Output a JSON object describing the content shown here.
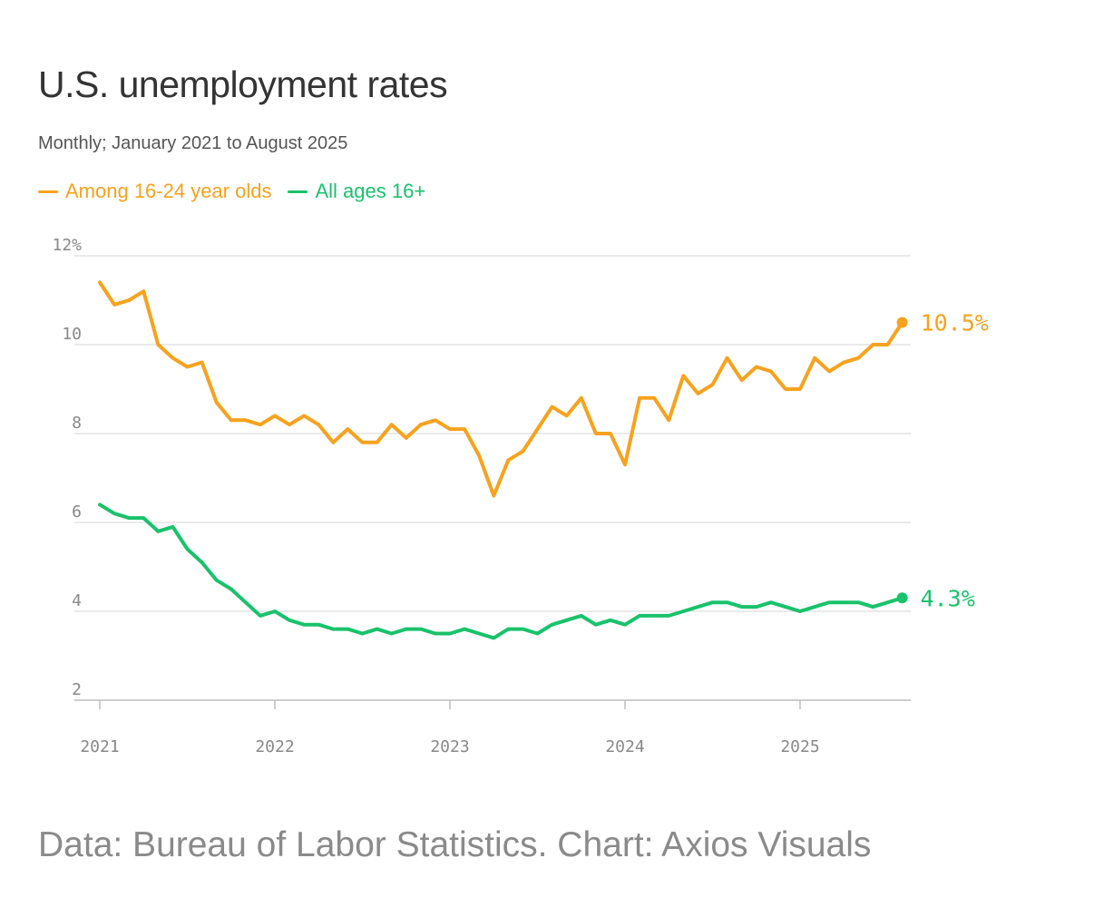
{
  "title": "U.S. unemployment rates",
  "subtitle": "Monthly; January 2021 to August 2025",
  "source": "Data: Bureau of Labor Statistics. Chart: Axios Visuals",
  "colors": {
    "youth": "#F7A21E",
    "all": "#19C26B",
    "grid": "#e3e3e3",
    "axis": "#bdbdbd"
  },
  "legend": [
    {
      "label": "Among 16-24 year olds",
      "color": "#F7A21E"
    },
    {
      "label": "All ages 16+",
      "color": "#19C26B"
    }
  ],
  "chart_data": {
    "type": "line",
    "title": "U.S. unemployment rates",
    "xlabel": "",
    "ylabel": "",
    "ylim": [
      2,
      12
    ],
    "yticks": [
      2,
      4,
      6,
      8,
      10,
      12
    ],
    "ytick_labels": [
      "2",
      "4",
      "6",
      "8",
      "10",
      "12%"
    ],
    "xticks": [
      2021,
      2022,
      2023,
      2024,
      2025
    ],
    "xtick_labels": [
      "2021",
      "2022",
      "2023",
      "2024",
      "2025"
    ],
    "x_start": "2021-01",
    "x_end": "2025-08",
    "series": [
      {
        "name": "Among 16-24 year olds",
        "color": "#F7A21E",
        "end_label": "10.5%",
        "values": [
          11.4,
          10.9,
          11.0,
          11.2,
          10.0,
          9.7,
          9.5,
          9.6,
          8.7,
          8.3,
          8.3,
          8.2,
          8.4,
          8.2,
          8.4,
          8.2,
          7.8,
          8.1,
          7.8,
          7.8,
          8.2,
          7.9,
          8.2,
          8.3,
          8.1,
          8.1,
          7.5,
          6.6,
          7.4,
          7.6,
          8.1,
          8.6,
          8.4,
          8.8,
          8.0,
          8.0,
          7.3,
          8.8,
          8.8,
          8.3,
          9.3,
          8.9,
          9.1,
          9.7,
          9.2,
          9.5,
          9.4,
          9.0,
          9.0,
          9.7,
          9.4,
          9.6,
          9.7,
          10.0,
          10.0,
          10.5
        ]
      },
      {
        "name": "All ages 16+",
        "color": "#19C26B",
        "end_label": "4.3%",
        "values": [
          6.4,
          6.2,
          6.1,
          6.1,
          5.8,
          5.9,
          5.4,
          5.1,
          4.7,
          4.5,
          4.2,
          3.9,
          4.0,
          3.8,
          3.7,
          3.7,
          3.6,
          3.6,
          3.5,
          3.6,
          3.5,
          3.6,
          3.6,
          3.5,
          3.5,
          3.6,
          3.5,
          3.4,
          3.6,
          3.6,
          3.5,
          3.7,
          3.8,
          3.9,
          3.7,
          3.8,
          3.7,
          3.9,
          3.9,
          3.9,
          4.0,
          4.1,
          4.2,
          4.2,
          4.1,
          4.1,
          4.2,
          4.1,
          4.0,
          4.1,
          4.2,
          4.2,
          4.2,
          4.1,
          4.2,
          4.3
        ]
      }
    ]
  }
}
